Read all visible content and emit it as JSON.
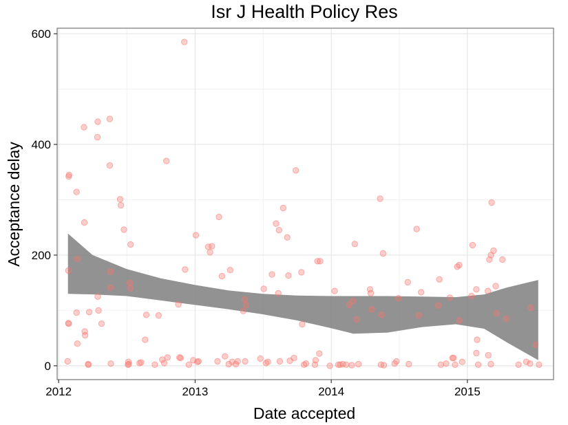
{
  "chart_data": {
    "type": "scatter",
    "title": "Isr J Health Policy Res",
    "xlabel": "Date accepted",
    "ylabel": "Acceptance delay",
    "x_ticks": [
      "2012",
      "2013",
      "2014",
      "2015"
    ],
    "y_ticks": [
      0,
      200,
      400,
      600
    ],
    "xlim": [
      "2011-12-28",
      "2015-08-20"
    ],
    "ylim": [
      -25,
      610
    ],
    "grid": true,
    "point_color": "#f8766d",
    "ribbon_color": "#7f7f7f",
    "points": [
      [
        "2012-01-25",
        8
      ],
      [
        "2012-01-27",
        172
      ],
      [
        "2012-01-27",
        77
      ],
      [
        "2012-01-28",
        76
      ],
      [
        "2012-01-28",
        342
      ],
      [
        "2012-01-29",
        345
      ],
      [
        "2012-02-18",
        314
      ],
      [
        "2012-02-18",
        96
      ],
      [
        "2012-02-20",
        193
      ],
      [
        "2012-02-20",
        40
      ],
      [
        "2012-03-09",
        431
      ],
      [
        "2012-03-10",
        259
      ],
      [
        "2012-03-11",
        62
      ],
      [
        "2012-03-12",
        55
      ],
      [
        "2012-03-20",
        3
      ],
      [
        "2012-03-21",
        2
      ],
      [
        "2012-03-23",
        97
      ],
      [
        "2012-04-14",
        413
      ],
      [
        "2012-04-15",
        441
      ],
      [
        "2012-04-15",
        125
      ],
      [
        "2012-04-17",
        100
      ],
      [
        "2012-04-25",
        76
      ],
      [
        "2012-05-17",
        446
      ],
      [
        "2012-05-17",
        362
      ],
      [
        "2012-05-19",
        170
      ],
      [
        "2012-05-19",
        141
      ],
      [
        "2012-05-20",
        4
      ],
      [
        "2012-06-14",
        301
      ],
      [
        "2012-06-16",
        290
      ],
      [
        "2012-06-24",
        246
      ],
      [
        "2012-07-05",
        2
      ],
      [
        "2012-07-06",
        7
      ],
      [
        "2012-07-07",
        3
      ],
      [
        "2012-07-10",
        150
      ],
      [
        "2012-07-11",
        140
      ],
      [
        "2012-07-12",
        219
      ],
      [
        "2012-08-05",
        5
      ],
      [
        "2012-08-09",
        6
      ],
      [
        "2012-08-23",
        92
      ],
      [
        "2012-08-20",
        47
      ],
      [
        "2012-09-15",
        2
      ],
      [
        "2012-09-25",
        91
      ],
      [
        "2012-10-05",
        11
      ],
      [
        "2012-10-10",
        5
      ],
      [
        "2012-10-19",
        15
      ],
      [
        "2012-10-16",
        370
      ],
      [
        "2012-11-20",
        15
      ],
      [
        "2012-11-23",
        14
      ],
      [
        "2012-11-17",
        111
      ],
      [
        "2012-12-03",
        585
      ],
      [
        "2012-12-05",
        174
      ],
      [
        "2012-12-15",
        2
      ],
      [
        "2012-12-27",
        10
      ],
      [
        "2013-01-03",
        236
      ],
      [
        "2013-01-07",
        7
      ],
      [
        "2013-01-10",
        8
      ],
      [
        "2013-02-05",
        215
      ],
      [
        "2013-02-10",
        205
      ],
      [
        "2013-02-15",
        216
      ],
      [
        "2013-03-02",
        8
      ],
      [
        "2013-03-06",
        269
      ],
      [
        "2013-03-14",
        162
      ],
      [
        "2013-03-22",
        17
      ],
      [
        "2013-04-01",
        3
      ],
      [
        "2013-04-05",
        173
      ],
      [
        "2013-04-10",
        7
      ],
      [
        "2013-04-20",
        3
      ],
      [
        "2013-04-25",
        8
      ],
      [
        "2013-05-10",
        99
      ],
      [
        "2013-05-14",
        120
      ],
      [
        "2013-05-18",
        110
      ],
      [
        "2013-05-15",
        8
      ],
      [
        "2013-06-25",
        13
      ],
      [
        "2013-07-04",
        139
      ],
      [
        "2013-07-10",
        5
      ],
      [
        "2013-07-15",
        7
      ],
      [
        "2013-07-26",
        165
      ],
      [
        "2013-08-06",
        257
      ],
      [
        "2013-08-12",
        131
      ],
      [
        "2013-08-14",
        245
      ],
      [
        "2013-08-16",
        8
      ],
      [
        "2013-08-25",
        285
      ],
      [
        "2013-09-05",
        232
      ],
      [
        "2013-09-08",
        163
      ],
      [
        "2013-09-12",
        9
      ],
      [
        "2013-09-28",
        353
      ],
      [
        "2013-09-23",
        14
      ],
      [
        "2013-10-13",
        169
      ],
      [
        "2013-10-15",
        75
      ],
      [
        "2013-10-20",
        2
      ],
      [
        "2013-10-25",
        4
      ],
      [
        "2013-11-18",
        2
      ],
      [
        "2013-11-20",
        10
      ],
      [
        "2013-11-25",
        189
      ],
      [
        "2013-12-02",
        189
      ],
      [
        "2013-11-30",
        22
      ],
      [
        "2013-12-28",
        0
      ],
      [
        "2014-02-25",
        1
      ],
      [
        "2014-01-10",
        135
      ],
      [
        "2014-01-20",
        2
      ],
      [
        "2014-01-25",
        2
      ],
      [
        "2014-02-01",
        3
      ],
      [
        "2014-02-10",
        2
      ],
      [
        "2014-02-18",
        110
      ],
      [
        "2014-02-28",
        117
      ],
      [
        "2014-03-05",
        220
      ],
      [
        "2014-03-10",
        84
      ],
      [
        "2014-03-15",
        3
      ],
      [
        "2014-04-15",
        138
      ],
      [
        "2014-04-17",
        131
      ],
      [
        "2014-04-20",
        102
      ],
      [
        "2014-05-12",
        302
      ],
      [
        "2014-05-14",
        2
      ],
      [
        "2014-05-16",
        92
      ],
      [
        "2014-05-20",
        203
      ],
      [
        "2014-05-22",
        1
      ],
      [
        "2014-06-20",
        4
      ],
      [
        "2014-06-25",
        8
      ],
      [
        "2014-06-30",
        122
      ],
      [
        "2014-07-25",
        151
      ],
      [
        "2014-07-28",
        3
      ],
      [
        "2014-08-18",
        247
      ],
      [
        "2014-08-24",
        91
      ],
      [
        "2014-08-30",
        133
      ],
      [
        "2014-10-15",
        109
      ],
      [
        "2014-10-18",
        156
      ],
      [
        "2014-10-22",
        2
      ],
      [
        "2014-11-05",
        4
      ],
      [
        "2014-11-15",
        123
      ],
      [
        "2014-11-22",
        14
      ],
      [
        "2014-11-25",
        14
      ],
      [
        "2014-11-29",
        2
      ],
      [
        "2014-12-05",
        179
      ],
      [
        "2014-12-10",
        182
      ],
      [
        "2014-12-10",
        82
      ],
      [
        "2014-12-18",
        7
      ],
      [
        "2015-01-12",
        126
      ],
      [
        "2015-01-15",
        218
      ],
      [
        "2015-01-25",
        138
      ],
      [
        "2015-01-27",
        47
      ],
      [
        "2015-01-25",
        23
      ],
      [
        "2015-01-30",
        2
      ],
      [
        "2015-02-25",
        135
      ],
      [
        "2015-02-26",
        19
      ],
      [
        "2015-03-05",
        3
      ],
      [
        "2015-03-01",
        192
      ],
      [
        "2015-03-05",
        200
      ],
      [
        "2015-03-07",
        295
      ],
      [
        "2015-03-12",
        208
      ],
      [
        "2015-03-18",
        144
      ],
      [
        "2015-03-20",
        95
      ],
      [
        "2015-04-05",
        192
      ],
      [
        "2015-04-15",
        85
      ],
      [
        "2015-05-18",
        2
      ],
      [
        "2015-06-08",
        7
      ],
      [
        "2015-06-18",
        4
      ],
      [
        "2015-06-20",
        105
      ],
      [
        "2015-07-02",
        38
      ],
      [
        "2015-07-12",
        2
      ]
    ],
    "smooth_band": [
      {
        "x": "2012-01-26",
        "lo": 130,
        "hi": 239
      },
      {
        "x": "2012-04-01",
        "lo": 129,
        "hi": 200
      },
      {
        "x": "2012-07-01",
        "lo": 126,
        "hi": 175
      },
      {
        "x": "2012-10-01",
        "lo": 118,
        "hi": 158
      },
      {
        "x": "2013-01-01",
        "lo": 110,
        "hi": 146
      },
      {
        "x": "2013-04-01",
        "lo": 102,
        "hi": 136
      },
      {
        "x": "2013-07-01",
        "lo": 93,
        "hi": 130
      },
      {
        "x": "2013-10-01",
        "lo": 82,
        "hi": 127
      },
      {
        "x": "2014-01-01",
        "lo": 68,
        "hi": 126
      },
      {
        "x": "2014-03-01",
        "lo": 58,
        "hi": 126
      },
      {
        "x": "2014-06-01",
        "lo": 60,
        "hi": 126
      },
      {
        "x": "2014-09-01",
        "lo": 70,
        "hi": 125
      },
      {
        "x": "2014-12-01",
        "lo": 75,
        "hi": 124
      },
      {
        "x": "2015-02-15",
        "lo": 67,
        "hi": 129
      },
      {
        "x": "2015-04-15",
        "lo": 43,
        "hi": 141
      },
      {
        "x": "2015-07-10",
        "lo": 10,
        "hi": 155
      }
    ]
  }
}
